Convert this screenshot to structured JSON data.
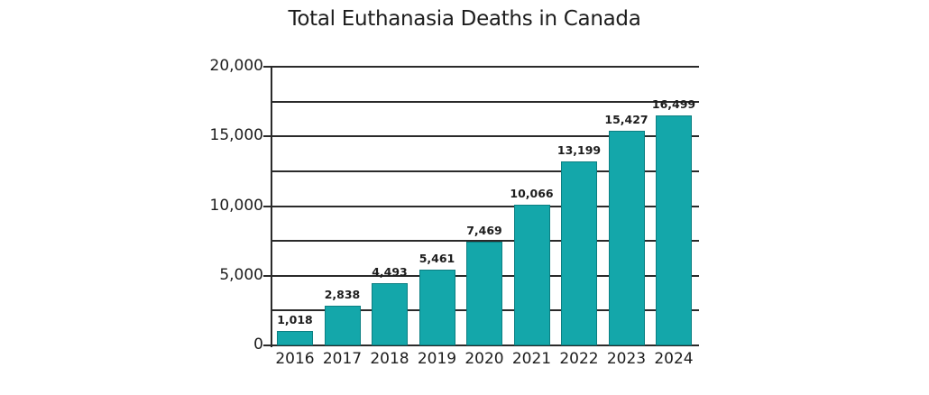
{
  "chart_data": {
    "type": "bar",
    "title": "Total Euthanasia Deaths in Canada",
    "xlabel": "",
    "ylabel": "",
    "categories": [
      "2016",
      "2017",
      "2018",
      "2019",
      "2020",
      "2021",
      "2022",
      "2023",
      "2024"
    ],
    "values": [
      1018,
      2838,
      4493,
      5461,
      7469,
      10066,
      13199,
      15427,
      16499
    ],
    "value_labels": [
      "1,018",
      "2,838",
      "4,493",
      "5,461",
      "7,469",
      "10,066",
      "13,199",
      "15,427",
      "16,499"
    ],
    "ylim": [
      0,
      20000
    ],
    "yticks": [
      0,
      5000,
      10000,
      15000,
      20000
    ],
    "ytick_labels": [
      "0",
      "5,000",
      "10,000",
      "15,000",
      "20,000"
    ],
    "gridlines": [
      2500,
      5000,
      7500,
      10000,
      12500,
      15000,
      17500,
      20000
    ],
    "grid": true,
    "legend": null,
    "bar_color": "#14a7aa"
  }
}
